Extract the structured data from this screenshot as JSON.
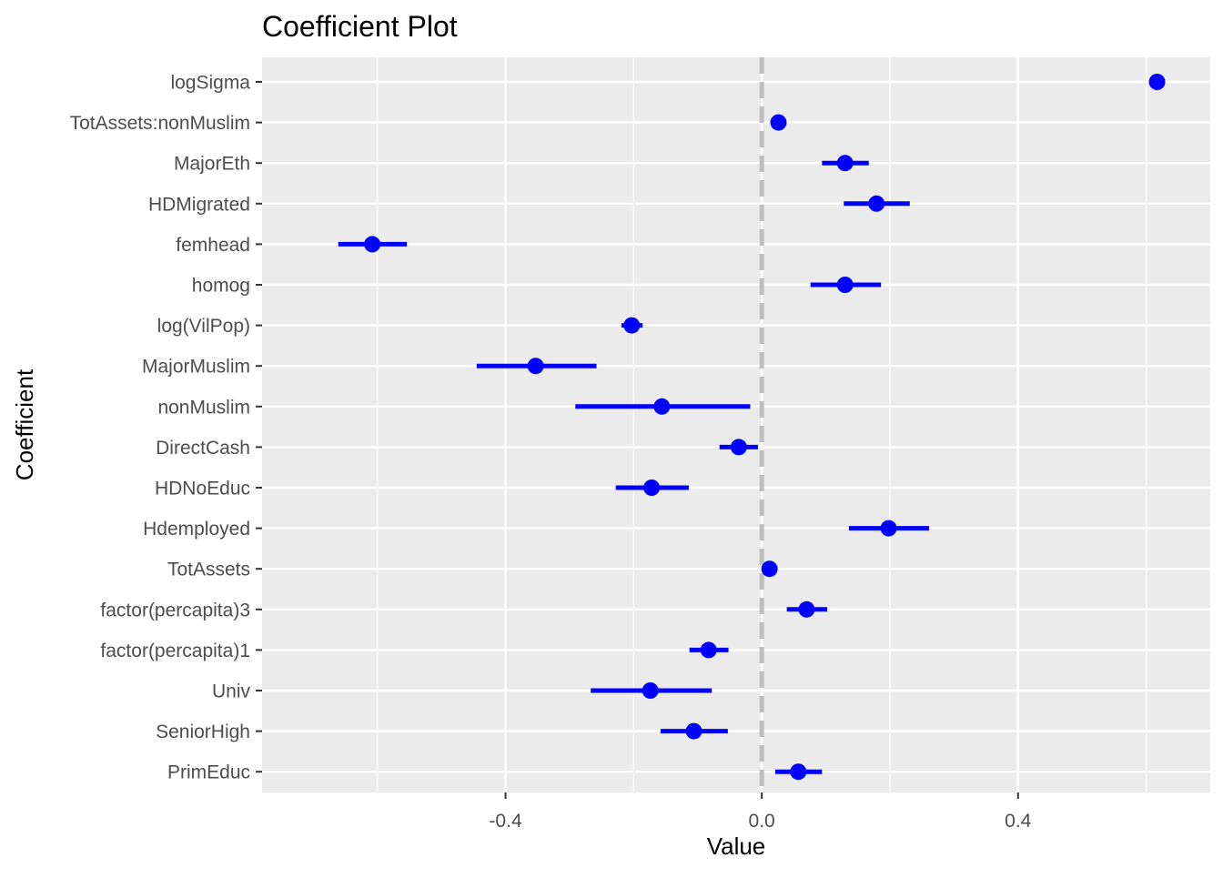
{
  "chart_data": {
    "type": "scatter",
    "title": "Coefficient Plot",
    "xlabel": "Value",
    "ylabel": "Coefficient",
    "xlim": [
      -0.78,
      0.7
    ],
    "x_ticks": [
      -0.4,
      0.0,
      0.4
    ],
    "x_tick_labels": [
      "-0.4",
      "0.0",
      "0.4"
    ],
    "reference_line": 0,
    "grid": true,
    "colors": {
      "points": "#0000ff",
      "panel": "#ebebeb",
      "grid": "#ffffff",
      "reference": "#bebebe"
    },
    "coefficients": [
      {
        "name": "logSigma",
        "value": 0.617,
        "low": 0.617,
        "high": 0.617
      },
      {
        "name": "TotAssets:nonMuslim",
        "value": 0.026,
        "low": 0.026,
        "high": 0.026
      },
      {
        "name": "MajorEth",
        "value": 0.13,
        "low": 0.094,
        "high": 0.167
      },
      {
        "name": "HDMigrated",
        "value": 0.179,
        "low": 0.128,
        "high": 0.231
      },
      {
        "name": "femhead",
        "value": -0.608,
        "low": -0.661,
        "high": -0.554
      },
      {
        "name": "homog",
        "value": 0.13,
        "low": 0.076,
        "high": 0.186
      },
      {
        "name": "log(VilPop)",
        "value": -0.203,
        "low": -0.219,
        "high": -0.186
      },
      {
        "name": "MajorMuslim",
        "value": -0.353,
        "low": -0.445,
        "high": -0.258
      },
      {
        "name": "nonMuslim",
        "value": -0.156,
        "low": -0.291,
        "high": -0.018
      },
      {
        "name": "DirectCash",
        "value": -0.036,
        "low": -0.066,
        "high": -0.006
      },
      {
        "name": "HDNoEduc",
        "value": -0.172,
        "low": -0.228,
        "high": -0.114
      },
      {
        "name": "Hdemployed",
        "value": 0.198,
        "low": 0.136,
        "high": 0.261
      },
      {
        "name": "TotAssets",
        "value": 0.012,
        "low": 0.012,
        "high": 0.012
      },
      {
        "name": "factor(percapita)3",
        "value": 0.07,
        "low": 0.039,
        "high": 0.102
      },
      {
        "name": "factor(percapita)1",
        "value": -0.083,
        "low": -0.113,
        "high": -0.052
      },
      {
        "name": "Univ",
        "value": -0.174,
        "low": -0.267,
        "high": -0.078
      },
      {
        "name": "SeniorHigh",
        "value": -0.106,
        "low": -0.158,
        "high": -0.053
      },
      {
        "name": "PrimEduc",
        "value": 0.057,
        "low": 0.021,
        "high": 0.094
      }
    ]
  }
}
